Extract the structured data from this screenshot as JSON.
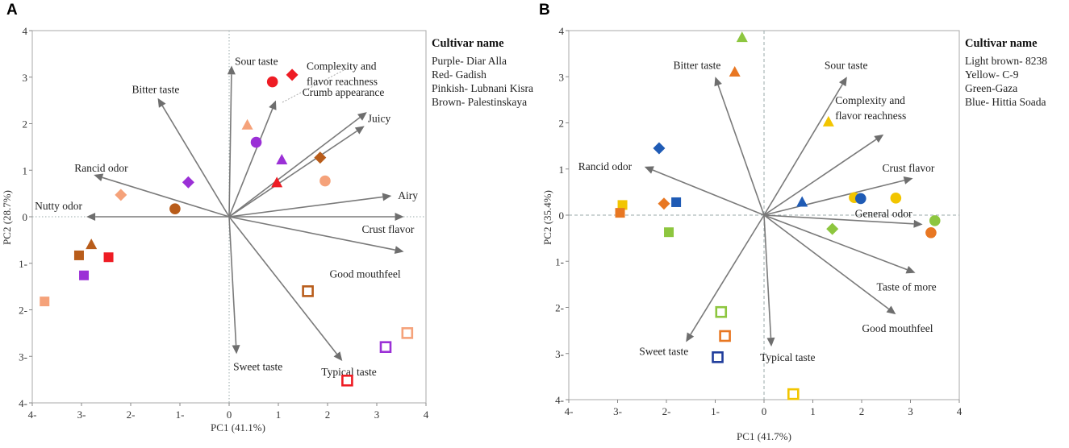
{
  "chart_data": [
    {
      "type": "scatter",
      "panel": "A",
      "xlabel": "PC1 (41.1%)",
      "ylabel": "PC2 (28.7%)",
      "xlim": [
        -4,
        4
      ],
      "ylim": [
        -4,
        4
      ],
      "x_ticks": [
        {
          "v": -4,
          "label": "4-"
        },
        {
          "v": -3,
          "label": "3-"
        },
        {
          "v": -2,
          "label": "2-"
        },
        {
          "v": -1,
          "label": "1-"
        },
        {
          "v": 0,
          "label": "0"
        },
        {
          "v": 1,
          "label": "1"
        },
        {
          "v": 2,
          "label": "2"
        },
        {
          "v": 3,
          "label": "3"
        },
        {
          "v": 4,
          "label": "4"
        }
      ],
      "y_ticks": [
        {
          "v": 4,
          "label": "4"
        },
        {
          "v": 3,
          "label": "3"
        },
        {
          "v": 2,
          "label": "2"
        },
        {
          "v": 1,
          "label": "1"
        },
        {
          "v": 0,
          "label": "0"
        },
        {
          "v": -1,
          "label": "1-"
        },
        {
          "v": -2,
          "label": "2-"
        },
        {
          "v": -3,
          "label": "3-"
        },
        {
          "v": -4,
          "label": "4-"
        }
      ],
      "zero_line_style": "dotted",
      "legend": {
        "title": "Cultivar name",
        "items": [
          "Purple- Diar Alla",
          "Red- Gadish",
          "Pinkish- Lubnani Kisra",
          "Brown- Palestinskaya"
        ]
      },
      "vectors": [
        {
          "label": "Sour taste",
          "x": 0.05,
          "y": 3.25
        },
        {
          "label": "Complexity  and\nflavor reachness",
          "x": 0.95,
          "y": 2.5
        },
        {
          "label": "Bitter taste",
          "x": -1.45,
          "y": 2.55
        },
        {
          "label": "Crumb appearance",
          "x": 2.8,
          "y": 2.25
        },
        {
          "label": "Juicy",
          "x": 2.75,
          "y": 1.95
        },
        {
          "label": "Rancid odor",
          "x": -2.75,
          "y": 0.9
        },
        {
          "label": "Airy",
          "x": 3.3,
          "y": 0.45
        },
        {
          "label": "Nutty odor",
          "x": -2.9,
          "y": 0.0
        },
        {
          "label": "Crust flavor",
          "x": 3.55,
          "y": 0.0
        },
        {
          "label": "Good mouthfeel",
          "x": 3.55,
          "y": -0.75
        },
        {
          "label": "Sweet taste",
          "x": 0.15,
          "y": -2.95
        },
        {
          "label": "Typical taste",
          "x": 2.3,
          "y": -3.1
        }
      ],
      "points": [
        {
          "shape": "circle",
          "color": "#ee1c24",
          "x": 0.88,
          "y": 2.9
        },
        {
          "shape": "diamond",
          "color": "#ee1c24",
          "x": 1.28,
          "y": 3.05
        },
        {
          "shape": "triangle",
          "color": "#f5a27a",
          "x": 0.37,
          "y": 1.97
        },
        {
          "shape": "circle",
          "color": "#9b30d6",
          "x": 0.55,
          "y": 1.6
        },
        {
          "shape": "triangle",
          "color": "#9b30d6",
          "x": 1.07,
          "y": 1.22
        },
        {
          "shape": "diamond",
          "color": "#b85c1a",
          "x": 1.85,
          "y": 1.27
        },
        {
          "shape": "triangle",
          "color": "#ee1c24",
          "x": 0.97,
          "y": 0.73
        },
        {
          "shape": "circle",
          "color": "#f5a27a",
          "x": 1.95,
          "y": 0.77
        },
        {
          "shape": "diamond",
          "color": "#9b30d6",
          "x": -0.83,
          "y": 0.74
        },
        {
          "shape": "diamond",
          "color": "#f5a27a",
          "x": -2.2,
          "y": 0.47
        },
        {
          "shape": "circle",
          "color": "#b85c1a",
          "x": -1.1,
          "y": 0.17
        },
        {
          "shape": "triangle",
          "color": "#b85c1a",
          "x": -2.8,
          "y": -0.6
        },
        {
          "shape": "square",
          "color": "#b85c1a",
          "x": -3.05,
          "y": -0.83
        },
        {
          "shape": "square",
          "color": "#ee1c24",
          "x": -2.45,
          "y": -0.87
        },
        {
          "shape": "square",
          "color": "#9b30d6",
          "x": -2.95,
          "y": -1.26
        },
        {
          "shape": "square",
          "color": "#f5a27a",
          "x": -3.75,
          "y": -1.82
        },
        {
          "shape": "open-square",
          "color": "#b85c1a",
          "x": 1.6,
          "y": -1.6
        },
        {
          "shape": "open-square",
          "color": "#f5a27a",
          "x": 3.62,
          "y": -2.5
        },
        {
          "shape": "open-square",
          "color": "#9b30d6",
          "x": 3.18,
          "y": -2.8
        },
        {
          "shape": "open-square",
          "color": "#ee1c24",
          "x": 2.4,
          "y": -3.52
        }
      ]
    },
    {
      "type": "scatter",
      "panel": "B",
      "xlabel": "PC1 (41.7%)",
      "ylabel": "PC2 (35.4%)",
      "xlim": [
        -4,
        4
      ],
      "ylim": [
        -4,
        4
      ],
      "x_ticks": [
        {
          "v": -4,
          "label": "4-"
        },
        {
          "v": -3,
          "label": "3-"
        },
        {
          "v": -2,
          "label": "2-"
        },
        {
          "v": -1,
          "label": "1-"
        },
        {
          "v": 0,
          "label": "0"
        },
        {
          "v": 1,
          "label": "1"
        },
        {
          "v": 2,
          "label": "2"
        },
        {
          "v": 3,
          "label": "3"
        },
        {
          "v": 4,
          "label": "4"
        }
      ],
      "y_ticks": [
        {
          "v": 4,
          "label": "4"
        },
        {
          "v": 3,
          "label": "3"
        },
        {
          "v": 2,
          "label": "2"
        },
        {
          "v": 1,
          "label": "1"
        },
        {
          "v": 0,
          "label": "0"
        },
        {
          "v": -1,
          "label": "1-"
        },
        {
          "v": -2,
          "label": "2-"
        },
        {
          "v": -3,
          "label": "3-"
        },
        {
          "v": -4,
          "label": "4-"
        }
      ],
      "zero_line_style": "dashed",
      "legend": {
        "title": "Cultivar name",
        "items": [
          "Light brown- 8238",
          "Yellow- C-9",
          "Green-Gaza",
          "Blue- Hittia Soada"
        ]
      },
      "vectors": [
        {
          "label": "Bitter taste",
          "x": -1.0,
          "y": 3.0
        },
        {
          "label": "Sour taste",
          "x": 1.7,
          "y": 3.0
        },
        {
          "label": "Complexity  and\nflavor reachness",
          "x": 2.45,
          "y": 1.75
        },
        {
          "label": "Rancid odor",
          "x": -2.45,
          "y": 1.05
        },
        {
          "label": "Crust flavor",
          "x": 3.05,
          "y": 0.8
        },
        {
          "label": "General odor",
          "x": 3.25,
          "y": -0.2
        },
        {
          "label": "Taste of more",
          "x": 3.1,
          "y": -1.25
        },
        {
          "label": "Good mouthfeel",
          "x": 2.7,
          "y": -2.15
        },
        {
          "label": "Sweet taste",
          "x": -1.6,
          "y": -2.75
        },
        {
          "label": "Typical taste",
          "x": 0.15,
          "y": -2.85
        }
      ],
      "points": [
        {
          "shape": "triangle",
          "color": "#8dc63f",
          "x": -0.45,
          "y": 3.85
        },
        {
          "shape": "triangle",
          "color": "#e87722",
          "x": -0.6,
          "y": 3.1
        },
        {
          "shape": "triangle",
          "color": "#f2c500",
          "x": 1.32,
          "y": 2.02
        },
        {
          "shape": "diamond",
          "color": "#1f5bb5",
          "x": -2.15,
          "y": 1.45
        },
        {
          "shape": "square",
          "color": "#f2c500",
          "x": -2.9,
          "y": 0.22
        },
        {
          "shape": "square",
          "color": "#e87722",
          "x": -2.95,
          "y": 0.05
        },
        {
          "shape": "diamond",
          "color": "#e87722",
          "x": -2.05,
          "y": 0.25
        },
        {
          "shape": "square",
          "color": "#1f5bb5",
          "x": -1.8,
          "y": 0.28
        },
        {
          "shape": "square",
          "color": "#8dc63f",
          "x": -1.95,
          "y": -0.37
        },
        {
          "shape": "triangle",
          "color": "#1f5bb5",
          "x": 0.78,
          "y": 0.28
        },
        {
          "shape": "circle",
          "color": "#f2c500",
          "x": 1.85,
          "y": 0.38
        },
        {
          "shape": "circle",
          "color": "#1f5bb5",
          "x": 1.98,
          "y": 0.36
        },
        {
          "shape": "circle",
          "color": "#f2c500",
          "x": 2.7,
          "y": 0.37
        },
        {
          "shape": "circle",
          "color": "#8dc63f",
          "x": 3.5,
          "y": -0.12
        },
        {
          "shape": "circle",
          "color": "#e87722",
          "x": 3.42,
          "y": -0.38
        },
        {
          "shape": "diamond",
          "color": "#8dc63f",
          "x": 1.4,
          "y": -0.3
        },
        {
          "shape": "open-square",
          "color": "#8dc63f",
          "x": -0.88,
          "y": -2.1
        },
        {
          "shape": "open-square",
          "color": "#e87722",
          "x": -0.8,
          "y": -2.62
        },
        {
          "shape": "open-square",
          "color": "#1f3d9c",
          "x": -0.95,
          "y": -3.08
        },
        {
          "shape": "open-square",
          "color": "#f2c500",
          "x": 0.6,
          "y": -3.88
        }
      ]
    }
  ]
}
